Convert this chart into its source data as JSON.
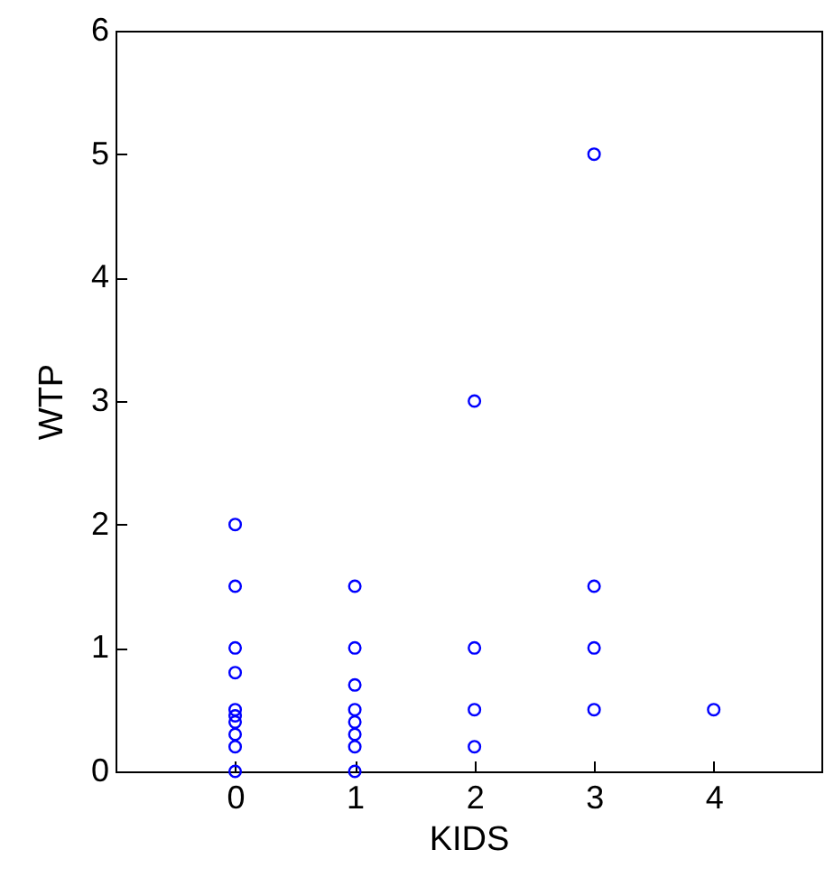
{
  "chart_data": {
    "type": "scatter",
    "xlabel": "KIDS",
    "ylabel": "WTP",
    "x": [
      0,
      0,
      0,
      0,
      0,
      0,
      0,
      0,
      0,
      0,
      1,
      1,
      1,
      1,
      1,
      1,
      1,
      1,
      2,
      2,
      2,
      2,
      3,
      3,
      3,
      3,
      4
    ],
    "series": [
      {
        "color": "#0000ff",
        "values": [
          2,
          1.5,
          1,
          0.8,
          0.5,
          0.45,
          0.4,
          0.3,
          0.2,
          0,
          1.5,
          1,
          0.7,
          0.5,
          0.4,
          0.3,
          0.2,
          0,
          3,
          1,
          0.5,
          0.2,
          5,
          1.5,
          1,
          0.5,
          0.5
        ]
      }
    ],
    "xlim": [
      -1,
      4.9
    ],
    "xticks": [
      0,
      1,
      2,
      3,
      4
    ],
    "ylim": [
      0,
      6
    ],
    "yticks": [
      0,
      1,
      2,
      3,
      4,
      5,
      6
    ],
    "marker": "circle",
    "grid": false
  }
}
